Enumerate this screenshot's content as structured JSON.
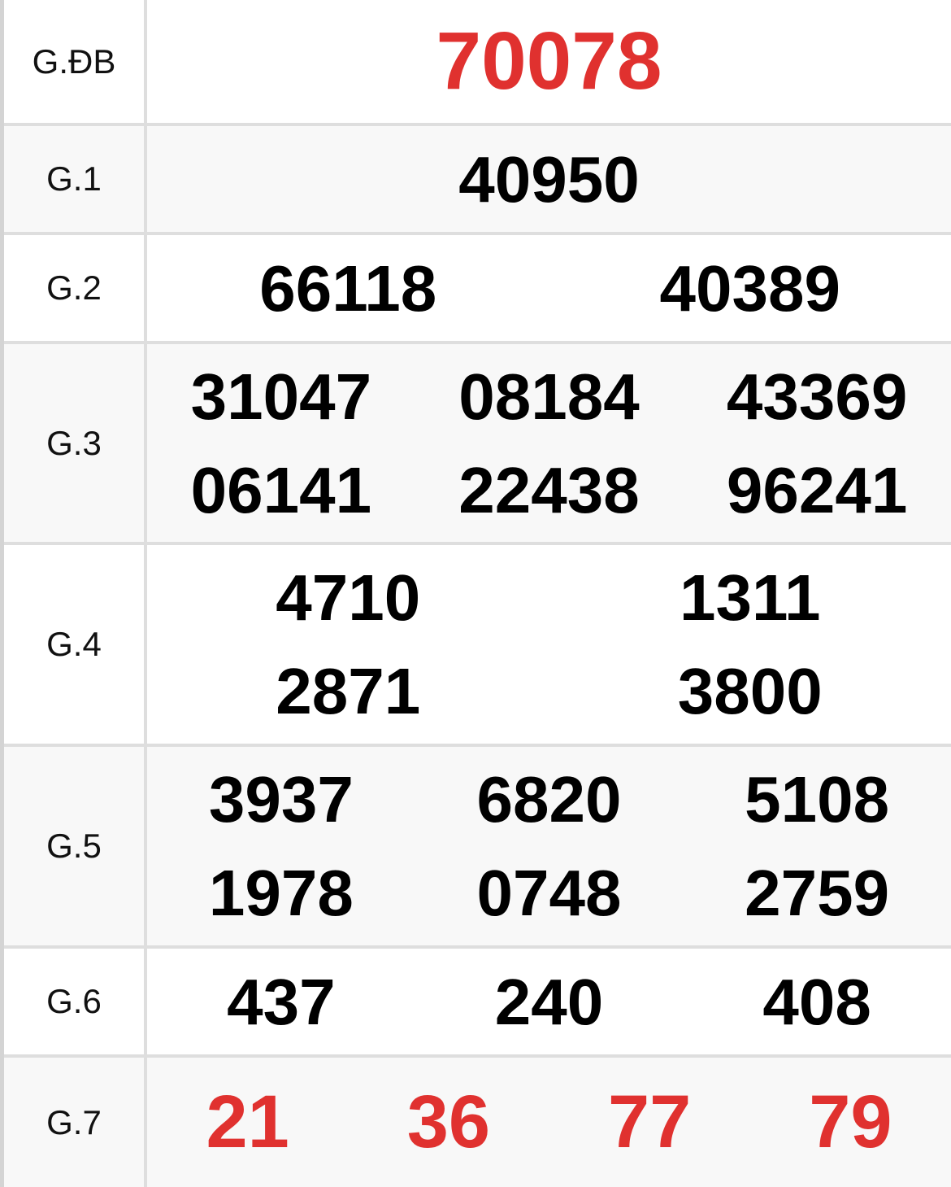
{
  "accent_color": "#e0312f",
  "prizes": [
    {
      "label": "G.ĐB",
      "columns": 1,
      "numbers": [
        "70078"
      ],
      "highlight": true
    },
    {
      "label": "G.1",
      "columns": 1,
      "numbers": [
        "40950"
      ],
      "highlight": false
    },
    {
      "label": "G.2",
      "columns": 2,
      "numbers": [
        "66118",
        "40389"
      ],
      "highlight": false
    },
    {
      "label": "G.3",
      "columns": 3,
      "numbers": [
        "31047",
        "08184",
        "43369",
        "06141",
        "22438",
        "96241"
      ],
      "highlight": false
    },
    {
      "label": "G.4",
      "columns": 2,
      "numbers": [
        "4710",
        "1311",
        "2871",
        "3800"
      ],
      "highlight": false
    },
    {
      "label": "G.5",
      "columns": 3,
      "numbers": [
        "3937",
        "6820",
        "5108",
        "1978",
        "0748",
        "2759"
      ],
      "highlight": false
    },
    {
      "label": "G.6",
      "columns": 3,
      "numbers": [
        "437",
        "240",
        "408"
      ],
      "highlight": false
    },
    {
      "label": "G.7",
      "columns": 4,
      "numbers": [
        "21",
        "36",
        "77",
        "79"
      ],
      "highlight": true
    }
  ]
}
